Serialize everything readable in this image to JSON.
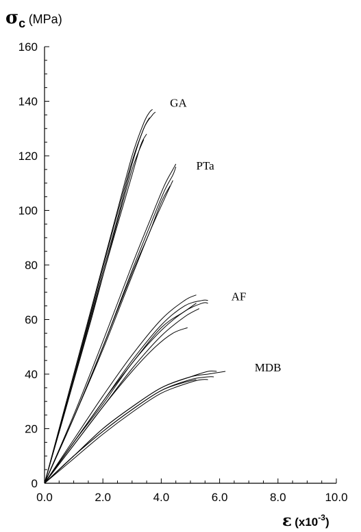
{
  "chart_data": {
    "type": "line",
    "ylabel": {
      "symbol": "σ",
      "subscript": "c",
      "unit": "(MPa)"
    },
    "xlabel": {
      "symbol": "ε",
      "unit_prefix": "(x10",
      "exponent": "-3",
      "unit_suffix": ")"
    },
    "xlim": [
      0,
      10
    ],
    "ylim": [
      0,
      160
    ],
    "x_ticks": [
      0,
      2,
      4,
      6,
      8,
      10
    ],
    "x_tick_labels": [
      "0.0",
      "2.0",
      "4.0",
      "6.0",
      "8.0",
      "10.0"
    ],
    "y_ticks": [
      0,
      20,
      40,
      60,
      80,
      100,
      120,
      140,
      160
    ],
    "y_tick_labels": [
      "0",
      "20",
      "40",
      "60",
      "80",
      "100",
      "120",
      "140",
      "160"
    ],
    "grid": false,
    "legend": "none",
    "series": [
      {
        "name": "GA",
        "samples": [
          {
            "x": [
              0,
              0.8,
              1.6,
              2.4,
              3.0,
              3.4,
              3.6,
              3.7
            ],
            "y": [
              0,
              32,
              64,
              96,
              120,
              132,
              136,
              137
            ]
          },
          {
            "x": [
              0,
              0.8,
              1.6,
              2.4,
              3.0,
              3.4,
              3.7,
              3.8
            ],
            "y": [
              0,
              31,
              62,
              93,
              117,
              130,
              135,
              136
            ]
          },
          {
            "x": [
              0,
              0.8,
              1.6,
              2.4,
              3.0,
              3.3,
              3.5
            ],
            "y": [
              0,
              30,
              61,
              91,
              113,
              124,
              128
            ]
          },
          {
            "x": [
              0,
              0.8,
              1.6,
              2.4,
              3.0,
              3.4,
              3.6
            ],
            "y": [
              0,
              31,
              63,
              95,
              118,
              130,
              134
            ]
          },
          {
            "x": [
              0,
              0.8,
              1.6,
              2.4,
              3.0,
              3.4
            ],
            "y": [
              0,
              30,
              60,
              92,
              115,
              126
            ]
          }
        ]
      },
      {
        "name": "PTa",
        "samples": [
          {
            "x": [
              0,
              1.0,
              2.0,
              3.0,
              3.6,
              4.1,
              4.4,
              4.5
            ],
            "y": [
              0,
              25,
              52,
              80,
              96,
              109,
              115,
              117
            ]
          },
          {
            "x": [
              0,
              1.0,
              2.0,
              3.0,
              3.6,
              4.1,
              4.4,
              4.5
            ],
            "y": [
              0,
              24,
              50,
              78,
              94,
              107,
              113,
              116
            ]
          },
          {
            "x": [
              0,
              1.0,
              2.0,
              3.0,
              3.6,
              4.0,
              4.3
            ],
            "y": [
              0,
              24,
              50,
              77,
              92,
              103,
              109
            ]
          },
          {
            "x": [
              0,
              1.0,
              2.0,
              3.0,
              3.6,
              4.1,
              4.4
            ],
            "y": [
              0,
              24,
              49,
              76,
              92,
              104,
              111
            ]
          }
        ]
      },
      {
        "name": "AF",
        "samples": [
          {
            "x": [
              0,
              1.0,
              2.0,
              3.0,
              4.0,
              4.8,
              5.2
            ],
            "y": [
              0,
              16,
              32,
              47,
              60,
              67,
              69
            ]
          },
          {
            "x": [
              0,
              1.0,
              2.0,
              3.0,
              4.0,
              4.8,
              5.4,
              5.6
            ],
            "y": [
              0,
              15,
              30,
              45,
              58,
              65,
              67,
              67
            ]
          },
          {
            "x": [
              0,
              1.0,
              2.0,
              3.0,
              4.0,
              4.8,
              5.4,
              5.6
            ],
            "y": [
              0,
              15,
              29,
              44,
              56,
              63,
              66,
              66
            ]
          },
          {
            "x": [
              0,
              1.0,
              2.0,
              3.0,
              4.0,
              4.8,
              5.3
            ],
            "y": [
              0,
              14,
              28,
              42,
              54,
              61,
              64
            ]
          },
          {
            "x": [
              0,
              1.0,
              2.0,
              3.0,
              3.8,
              4.4,
              4.9
            ],
            "y": [
              0,
              14,
              28,
              41,
              50,
              55,
              57
            ]
          },
          {
            "x": [
              0,
              1.0,
              2.0,
              3.0,
              4.0,
              4.8,
              5.2
            ],
            "y": [
              0,
              15,
              30,
              44,
              57,
              63,
              66
            ]
          }
        ]
      },
      {
        "name": "MDB",
        "samples": [
          {
            "x": [
              0,
              1.0,
              2.0,
              3.0,
              4.0,
              5.0,
              5.6,
              6.2
            ],
            "y": [
              0,
              10,
              20,
              28,
              35,
              39,
              40,
              41
            ]
          },
          {
            "x": [
              0,
              1.0,
              2.0,
              3.0,
              4.0,
              5.0,
              5.6,
              5.8
            ],
            "y": [
              0,
              10,
              19,
              27,
              34,
              38,
              39,
              39
            ]
          },
          {
            "x": [
              0,
              1.0,
              2.0,
              3.0,
              4.0,
              5.0,
              5.4,
              5.6
            ],
            "y": [
              0,
              9,
              18,
              26,
              33,
              37,
              38,
              38
            ]
          },
          {
            "x": [
              0,
              1.0,
              2.0,
              3.0,
              4.0,
              5.0,
              5.6,
              5.9
            ],
            "y": [
              0,
              10,
              20,
              28,
              35,
              39,
              41,
              41
            ]
          },
          {
            "x": [
              0,
              1.0,
              2.0,
              3.0,
              4.0,
              4.8,
              5.2
            ],
            "y": [
              0,
              10,
              19,
              27,
              34,
              37,
              38
            ]
          }
        ]
      }
    ],
    "annotations": [
      {
        "text": "GA",
        "x": 4.3,
        "y": 138
      },
      {
        "text": "PTa",
        "x": 5.2,
        "y": 115
      },
      {
        "text": "AF",
        "x": 6.4,
        "y": 67
      },
      {
        "text": "MDB",
        "x": 7.2,
        "y": 41
      }
    ]
  }
}
